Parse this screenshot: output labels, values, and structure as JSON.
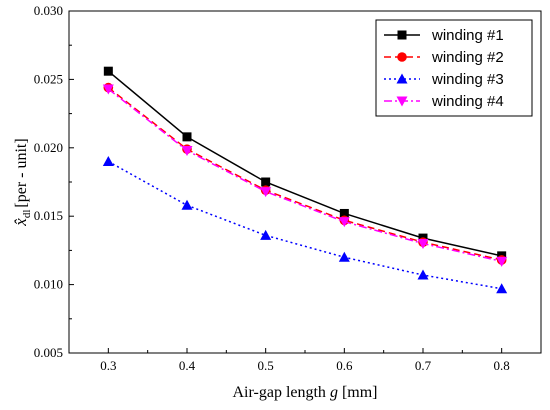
{
  "chart_data": {
    "type": "line",
    "xlabel": "Air-gap length g [mm]",
    "xlabel_parts": {
      "prefix": "Air-gap length ",
      "var": "g",
      "suffix": " [mm]"
    },
    "ylabel": "x̂dl [per-unit]",
    "ylabel_parts": {
      "base": "x̂",
      "sub": "dl",
      "suffix": "[per - unit]"
    },
    "xlim": [
      0.25,
      0.85
    ],
    "ylim": [
      0.005,
      0.03
    ],
    "xticks": [
      0.3,
      0.4,
      0.5,
      0.6,
      0.7,
      0.8
    ],
    "xtick_labels": [
      "0.3",
      "0.4",
      "0.5",
      "0.6",
      "0.7",
      "0.8"
    ],
    "yticks": [
      0.005,
      0.01,
      0.015,
      0.02,
      0.025,
      0.03
    ],
    "ytick_labels": [
      "0.005",
      "0.010",
      "0.015",
      "0.020",
      "0.025",
      "0.030"
    ],
    "grid": false,
    "legend_position": "top-right",
    "x": [
      0.3,
      0.4,
      0.5,
      0.6,
      0.7,
      0.8
    ],
    "series": [
      {
        "name": "winding #1",
        "values": [
          0.0256,
          0.0208,
          0.0175,
          0.0152,
          0.0134,
          0.0121
        ],
        "color": "#000000",
        "dash": "solid",
        "marker": "square"
      },
      {
        "name": "winding #2",
        "values": [
          0.0244,
          0.0199,
          0.0169,
          0.0147,
          0.0131,
          0.0118
        ],
        "color": "#ff0000",
        "dash": "dashed",
        "marker": "circle"
      },
      {
        "name": "winding #3",
        "values": [
          0.019,
          0.0158,
          0.0136,
          0.012,
          0.0107,
          0.0097
        ],
        "color": "#0000ff",
        "dash": "dotted",
        "marker": "triangle-up"
      },
      {
        "name": "winding #4",
        "values": [
          0.0243,
          0.0198,
          0.0168,
          0.0146,
          0.013,
          0.0117
        ],
        "color": "#ff00ff",
        "dash": "dashdot",
        "marker": "triangle-down"
      }
    ]
  }
}
